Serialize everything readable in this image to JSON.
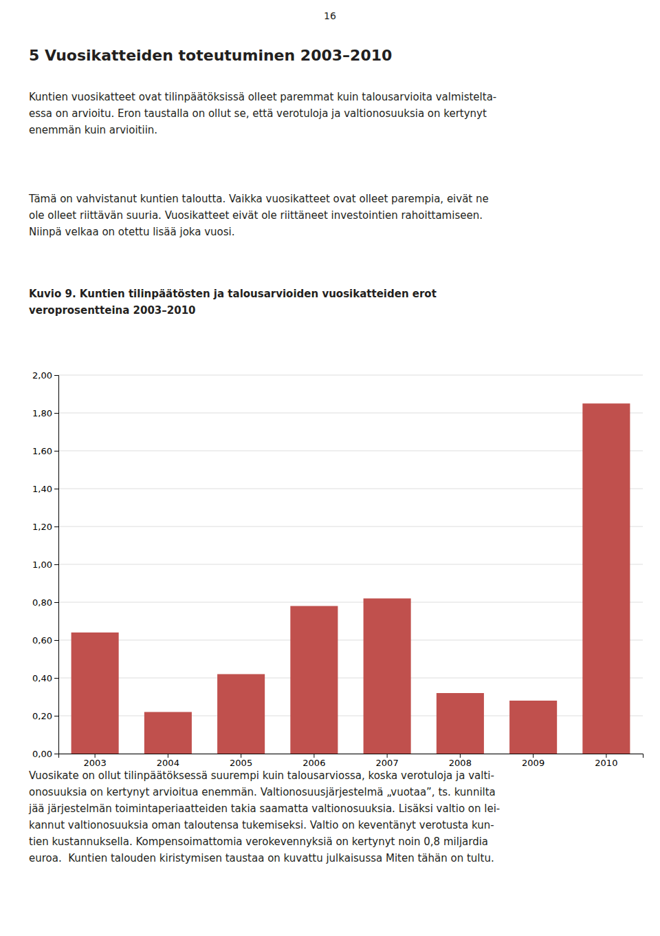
{
  "page_number": "16",
  "section_title": "5 Vuosikatteiden toteutuminen 2003–2010",
  "paragraphs_before": [
    [
      "Kuntien vuosikatteet ovat tilinpäätöksissä olleet paremmat kuin talousarvioita valmistelta-",
      "essa on arvioitu. Eron taustalla on ollut se, että verotuloja ja valtionosuuksia on kertynyt",
      "enemmän kuin arvioitiin."
    ],
    [
      "Tämä on vahvistanut kuntien taloutta. Vaikka vuosikatteet ovat olleet parempia, eivät ne",
      "ole olleet riittävän suuria. Vuosikatteet eivät ole riittäneet investointien rahoittamiseen.",
      "Niinpä velkaa on otettu lisää joka vuosi."
    ]
  ],
  "figure_caption": [
    "Kuvio 9. Kuntien tilinpäätösten ja talousarvioiden vuosikatteiden erot",
    "veroprosentteina 2003–2010"
  ],
  "paragraphs_after": [
    [
      "Vuosikate on ollut tilinpäätöksessä suurempi kuin talousarviossa, koska verotuloja ja valti-",
      "onosuuksia on kertynyt arvioitua enemmän. Valtionosuusjärjestelmä „vuotaa”, ts. kunnilta",
      "jää järjestelmän toimintaperiaatteiden takia saamatta valtionosuuksia. Lisäksi valtio on lei-",
      "kannut valtionosuuksia oman taloutensa tukemiseksi. Valtio on keventänyt verotusta kun-",
      "tien kustannuksella. Kompensoimattomia verokevennyksiä on kertynyt noin 0,8 miljardia",
      "euroa.  Kuntien talouden kiristymisen taustaa on kuvattu julkaisussa Miten tähän on tultu."
    ]
  ],
  "chart_data": {
    "type": "bar",
    "categories": [
      "2003",
      "2004",
      "2005",
      "2006",
      "2007",
      "2008",
      "2009",
      "2010"
    ],
    "values": [
      0.64,
      0.22,
      0.42,
      0.78,
      0.82,
      0.32,
      0.28,
      1.85
    ],
    "color": "#c0504d",
    "ylim": [
      0.0,
      2.0
    ],
    "yticks": [
      {
        "value": 0.0,
        "label": "0,00"
      },
      {
        "value": 0.2,
        "label": "0,20"
      },
      {
        "value": 0.4,
        "label": "0,40"
      },
      {
        "value": 0.6,
        "label": "0,60"
      },
      {
        "value": 0.8,
        "label": "0,80"
      },
      {
        "value": 1.0,
        "label": "1,00"
      },
      {
        "value": 1.2,
        "label": "1,20"
      },
      {
        "value": 1.4,
        "label": "1,40"
      },
      {
        "value": 1.6,
        "label": "1,60"
      },
      {
        "value": 1.8,
        "label": "1,80"
      },
      {
        "value": 2.0,
        "label": "2,00"
      }
    ],
    "grid": true
  }
}
